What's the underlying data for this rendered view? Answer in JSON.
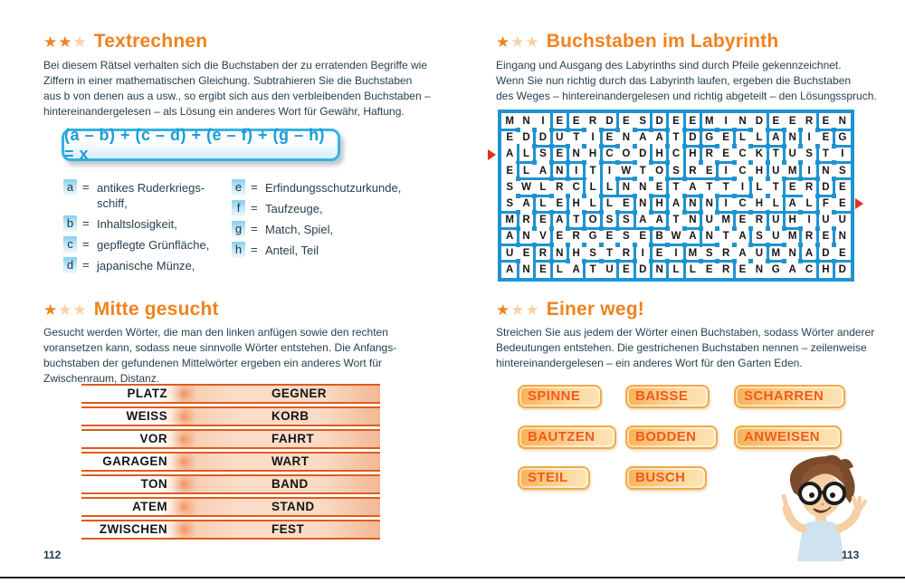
{
  "palette": {
    "accent_orange": "#f0821e",
    "star_pale": "#f8d2a6",
    "maze_blue": "#1f93d1",
    "formula_blue": "#1c9cd8",
    "ladder_line_orange": "#e05a1d",
    "chip_text_orange": "#ef5a1f",
    "body_text": "#27404e"
  },
  "page_left": {
    "page_number": "112",
    "textrechnen": {
      "title": "Textrechnen",
      "stars_filled": 2,
      "stars_total": 3,
      "intro_lines": [
        "Bei diesem Rätsel verhalten sich die Buchstaben der zu erratenden Begriffe wie",
        "Ziffern in einer mathematischen Gleichung. Subtrahieren Sie die Buchstaben",
        "aus b von denen aus a usw., so ergibt sich aus den verbleibenden Buchstaben –",
        "hintereinandergelesen – als Lösung ein anderes Wort für Gewähr, Haftung."
      ],
      "formula": "(a – b) + (c – d) + (e – f) + (g – h) = x",
      "definitions_left": [
        {
          "key": "a",
          "text": "antikes Ruderkriegs-\nschiff,"
        },
        {
          "key": "b",
          "text": "Inhaltslosigkeit,"
        },
        {
          "key": "c",
          "text": "gepflegte Grünfläche,"
        },
        {
          "key": "d",
          "text": "japanische Münze,"
        }
      ],
      "definitions_right": [
        {
          "key": "e",
          "text": "Erfindungsschutzurkunde,"
        },
        {
          "key": "f",
          "text": "Taufzeuge,"
        },
        {
          "key": "g",
          "text": "Match, Spiel,"
        },
        {
          "key": "h",
          "text": "Anteil, Teil"
        }
      ]
    },
    "mitte_gesucht": {
      "title": "Mitte gesucht",
      "stars_filled": 1,
      "stars_total": 3,
      "intro_lines": [
        "Gesucht werden Wörter, die man den linken anfügen sowie den rechten",
        "voransetzen kann, sodass neue sinnvolle Wörter entstehen. Die Anfangs-",
        "buchstaben der gefundenen Mittelwörter ergeben ein anderes Wort für",
        "Zwischenraum, Distanz."
      ],
      "ladder": [
        {
          "left": "PLATZ",
          "right": "GEGNER"
        },
        {
          "left": "WEISS",
          "right": "KORB"
        },
        {
          "left": "VOR",
          "right": "FAHRT"
        },
        {
          "left": "GARAGEN",
          "right": "WART"
        },
        {
          "left": "TON",
          "right": "BAND"
        },
        {
          "left": "ATEM",
          "right": "STAND"
        },
        {
          "left": "ZWISCHEN",
          "right": "FEST"
        }
      ]
    }
  },
  "page_right": {
    "page_number": "113",
    "labyrinth": {
      "title": "Buchstaben im Labyrinth",
      "stars_filled": 1,
      "stars_total": 3,
      "intro_lines": [
        "Eingang und Ausgang des Labyrinths sind durch Pfeile gekennzeichnet.",
        "Wenn Sie nun richtig durch das Labyrinth laufen, ergeben die Buchstaben",
        "des Weges – hintereinandergelesen und richtig abgeteilt – den Lösungsspruch."
      ],
      "maze_rows": [
        "MNIEERDESDEEMINDEEREN",
        "EDDUTIENAATDGELLANIEG",
        "ALSENHCODHCHRECKTUSTI",
        "ELANITIWTOSREICHUMINS",
        "SWLRCLLNNETATTILTERDE",
        "SALEHLLENHANNICHLALFE",
        "MREATOSSAATNUMERUHIUU",
        "ANVERGESEBWANTASUMREN",
        "UERNHSTRIEIMSRAUMNADE",
        "ANELATUEDNLLERENGACHD"
      ],
      "entrance_row": 3,
      "exit_row": 6
    },
    "einer_weg": {
      "title": "Einer weg!",
      "stars_filled": 1,
      "stars_total": 3,
      "intro_lines": [
        "Streichen Sie aus jedem der Wörter einen Buchstaben, sodass Wörter anderer",
        "Bedeutungen entstehen. Die gestrichenen Buchstaben nennen – zeilenweise",
        "hintereinandergelesen – ein anderes Wort für den Garten Eden."
      ],
      "word_rows": [
        [
          "SPINNE",
          "BAISSE",
          "SCHARREN"
        ],
        [
          "BAUTZEN",
          "BODDEN",
          "ANWEISEN"
        ],
        [
          "STEIL",
          "BUSCH"
        ]
      ]
    }
  }
}
